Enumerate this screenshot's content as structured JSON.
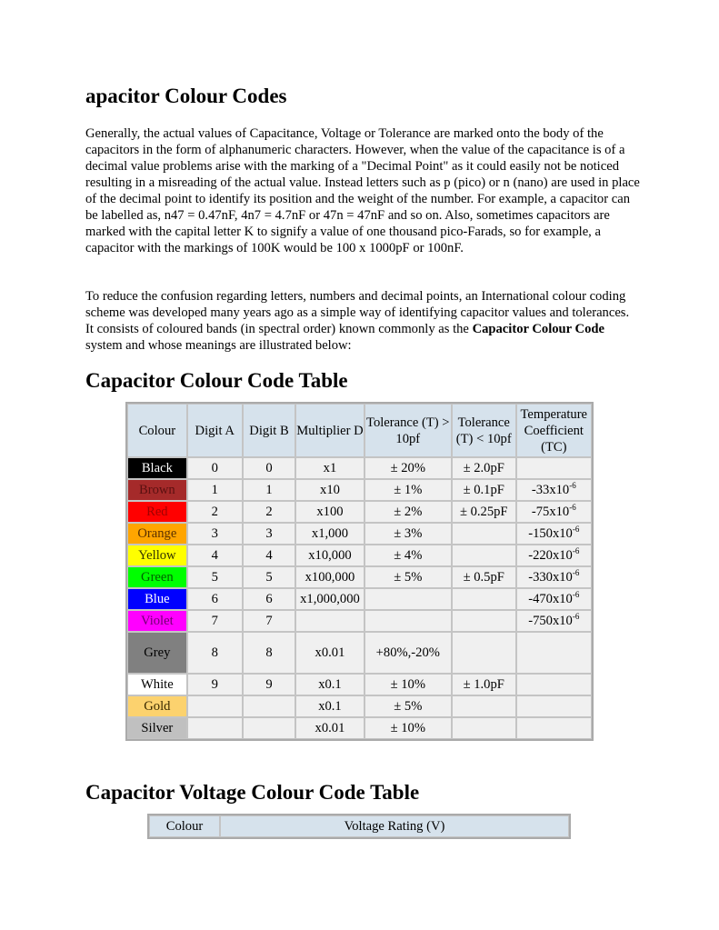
{
  "title": "apacitor Colour Codes",
  "paragraphs": [
    "Generally, the actual values of Capacitance, Voltage or Tolerance are marked onto the body of the capacitors in the form of alphanumeric characters. However, when the value of the capacitance is of a decimal value problems arise with the marking of a \"Decimal Point\" as it could easily not be noticed resulting in a misreading of the actual value. Instead letters such as p (pico) or n (nano) are used in place of the decimal point to identify its position and the weight of the number. For example, a capacitor can be labelled as, n47 = 0.47nF, 4n7 = 4.7nF or 47n = 47nF and so on. Also, sometimes capacitors are marked with the capital letter K to signify a value of one thousand pico-Farads, so for example, a capacitor with the markings of 100K would be 100 x 1000pF or 100nF.",
    "To reduce the confusion regarding letters, numbers and decimal points, an International colour coding scheme was developed many years ago as a simple way of identifying capacitor values and tolerances. It consists of coloured bands (in spectral order) known commonly as the"
  ],
  "para2_bold": "Capacitor Colour Code",
  "para2_end": " system and whose meanings are illustrated below:",
  "table1": {
    "heading": "Capacitor Colour Code Table",
    "headers": [
      "Colour",
      "Digit A",
      "Digit B",
      "Multiplier D",
      "Tolerance (T) > 10pf",
      "Tolerance (T) < 10pf",
      "Temperature Coefficient (TC)"
    ],
    "rows": [
      {
        "colour": "Black",
        "bg": "#000000",
        "fg": "#ffffff",
        "a": "0",
        "b": "0",
        "mult": "x1",
        "t1": "± 20%",
        "t2": "± 2.0pF",
        "tc": "",
        "tc_exp": ""
      },
      {
        "colour": "Brown",
        "bg": "#a52a2a",
        "fg": "#5a1010",
        "a": "1",
        "b": "1",
        "mult": "x10",
        "t1": "± 1%",
        "t2": "± 0.1pF",
        "tc": "-33x10",
        "tc_exp": "-6"
      },
      {
        "colour": "Red",
        "bg": "#ff0000",
        "fg": "#a00000",
        "a": "2",
        "b": "2",
        "mult": "x100",
        "t1": "± 2%",
        "t2": "± 0.25pF",
        "tc": "-75x10",
        "tc_exp": "-6"
      },
      {
        "colour": "Orange",
        "bg": "#ffa500",
        "fg": "#5a3000",
        "a": "3",
        "b": "3",
        "mult": "x1,000",
        "t1": "± 3%",
        "t2": "",
        "tc": "-150x10",
        "tc_exp": "-6"
      },
      {
        "colour": "Yellow",
        "bg": "#ffff00",
        "fg": "#333300",
        "a": "4",
        "b": "4",
        "mult": "x10,000",
        "t1": "± 4%",
        "t2": "",
        "tc": "-220x10",
        "tc_exp": "-6"
      },
      {
        "colour": "Green",
        "bg": "#00ff00",
        "fg": "#006000",
        "a": "5",
        "b": "5",
        "mult": "x100,000",
        "t1": "± 5%",
        "t2": "± 0.5pF",
        "tc": "-330x10",
        "tc_exp": "-6"
      },
      {
        "colour": "Blue",
        "bg": "#0000ff",
        "fg": "#ffffff",
        "a": "6",
        "b": "6",
        "mult": "x1,000,000",
        "t1": "",
        "t2": "",
        "tc": "-470x10",
        "tc_exp": "-6"
      },
      {
        "colour": "Violet",
        "bg": "#ff00ff",
        "fg": "#700070",
        "a": "7",
        "b": "7",
        "mult": "",
        "t1": "",
        "t2": "",
        "tc": "-750x10",
        "tc_exp": "-6"
      },
      {
        "colour": "Grey",
        "bg": "#808080",
        "fg": "#000000",
        "a": "8",
        "b": "8",
        "mult": "x0.01",
        "t1": "+80%,-20%",
        "t2": "",
        "tc": "",
        "tc_exp": ""
      },
      {
        "colour": "White",
        "bg": "#ffffff",
        "fg": "#000000",
        "a": "9",
        "b": "9",
        "mult": "x0.1",
        "t1": "± 10%",
        "t2": "± 1.0pF",
        "tc": "",
        "tc_exp": ""
      },
      {
        "colour": "Gold",
        "bg": "#fcd26e",
        "fg": "#3a2a00",
        "a": "",
        "b": "",
        "mult": "x0.1",
        "t1": "± 5%",
        "t2": "",
        "tc": "",
        "tc_exp": ""
      },
      {
        "colour": "Silver",
        "bg": "#c0c0c0",
        "fg": "#000000",
        "a": "",
        "b": "",
        "mult": "x0.01",
        "t1": "± 10%",
        "t2": "",
        "tc": "",
        "tc_exp": ""
      }
    ]
  },
  "table2": {
    "heading": "Capacitor Voltage Colour Code Table",
    "headers": [
      "Colour",
      "Voltage Rating (V)"
    ]
  }
}
